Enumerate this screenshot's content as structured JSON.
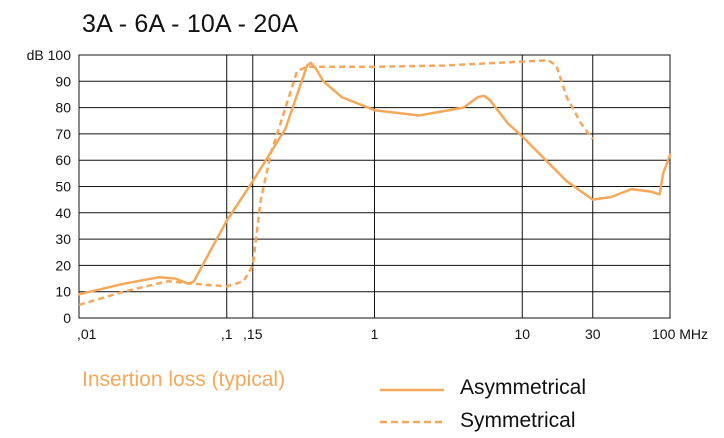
{
  "title": "3A - 6A - 10A - 20A",
  "caption": "Insertion loss (typical)",
  "chart_data": {
    "type": "line",
    "title": "3A - 6A - 10A - 20A",
    "x_scale": "log",
    "xlim": [
      0.01,
      100
    ],
    "ylim": [
      0,
      100
    ],
    "ylabel": "dB",
    "xunit": "MHz",
    "grid": true,
    "x_ticks": [
      0.01,
      0.1,
      0.15,
      1,
      10,
      30,
      100
    ],
    "x_tick_labels": [
      ",01",
      ",1",
      ",15",
      "1",
      "10",
      "30",
      "100 MHz"
    ],
    "y_ticks": [
      0,
      10,
      20,
      30,
      40,
      50,
      60,
      70,
      80,
      90,
      100
    ],
    "y_tick_labels": [
      "0",
      "10",
      "20",
      "30",
      "40",
      "50",
      "60",
      "70",
      "80",
      "90",
      "dB 100"
    ],
    "color": "#f5a85a",
    "legend_position": "bottom-right",
    "series": [
      {
        "name": "Asymmetrical",
        "style": "solid",
        "x": [
          0.01,
          0.02,
          0.035,
          0.045,
          0.055,
          0.06,
          0.08,
          0.1,
          0.15,
          0.25,
          0.35,
          0.37,
          0.4,
          0.45,
          0.6,
          1,
          2,
          4,
          5,
          5.5,
          6,
          8,
          10,
          20,
          30,
          40,
          55,
          75,
          85,
          90,
          100
        ],
        "y": [
          9,
          13,
          15.5,
          15,
          13,
          14,
          27,
          37,
          52,
          72,
          96,
          97,
          95,
          90,
          84,
          79,
          77,
          80,
          84,
          84.5,
          83,
          74,
          69,
          52,
          45,
          46,
          49,
          48,
          47,
          55,
          62
        ]
      },
      {
        "name": "Symmetrical",
        "style": "dashed",
        "x": [
          0.01,
          0.02,
          0.04,
          0.06,
          0.1,
          0.13,
          0.15,
          0.17,
          0.2,
          0.25,
          0.3,
          0.35,
          0.4,
          0.6,
          1,
          3,
          10,
          15,
          17,
          20,
          25,
          30
        ],
        "y": [
          5,
          10,
          14,
          13,
          12,
          14,
          20,
          45,
          63,
          80,
          94,
          95.5,
          95.5,
          95.5,
          95.5,
          96,
          97.5,
          98,
          96,
          84,
          74,
          68
        ]
      }
    ]
  }
}
